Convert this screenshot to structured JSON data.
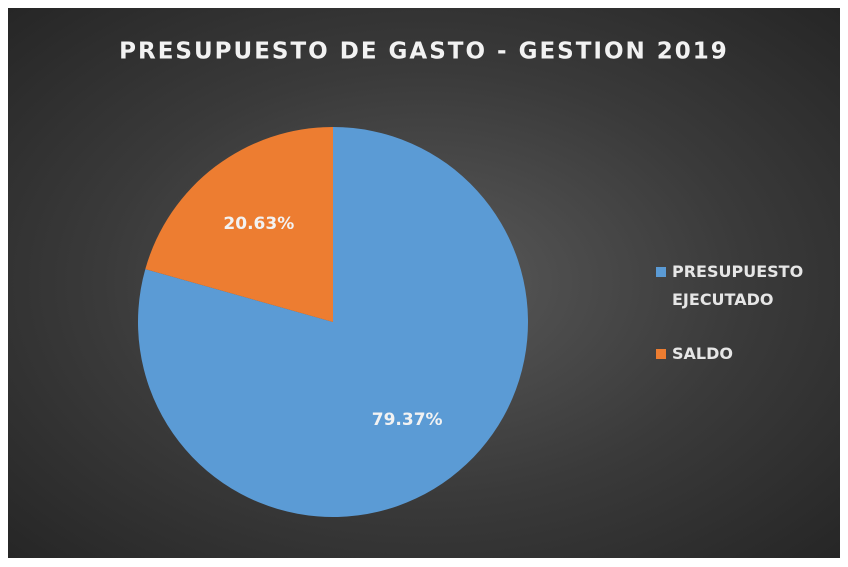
{
  "chart_data": {
    "type": "pie",
    "title": "PRESUPUESTO DE GASTO - GESTION 2019",
    "categories": [
      "PRESUPUESTO EJECUTADO",
      "SALDO"
    ],
    "values": [
      79.37,
      20.63
    ],
    "value_labels": [
      "79.37%",
      "20.63%"
    ],
    "colors": [
      "#5b9bd5",
      "#ed7d31"
    ],
    "legend": "right"
  }
}
